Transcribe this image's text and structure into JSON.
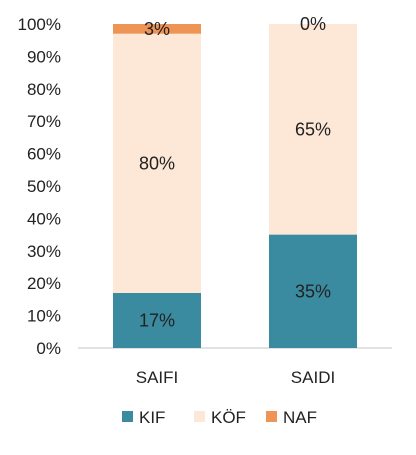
{
  "chart_data": {
    "type": "bar",
    "stacked": true,
    "categories": [
      "SAIFI",
      "SAIDI"
    ],
    "series": [
      {
        "name": "KIF",
        "values": [
          17,
          35
        ],
        "labels": [
          "17%",
          "35%"
        ],
        "color": "#3a8aa0"
      },
      {
        "name": "KÖF",
        "values": [
          80,
          65
        ],
        "labels": [
          "80%",
          "65%"
        ],
        "color": "#fde7d6"
      },
      {
        "name": "NAF",
        "values": [
          3,
          0
        ],
        "labels": [
          "3%",
          "0%"
        ],
        "color": "#ee9455"
      }
    ],
    "ylim": [
      0,
      100
    ],
    "yticks": [
      0,
      10,
      20,
      30,
      40,
      50,
      60,
      70,
      80,
      90,
      100
    ],
    "ytick_labels": [
      "0%",
      "10%",
      "20%",
      "30%",
      "40%",
      "50%",
      "60%",
      "70%",
      "80%",
      "90%",
      "100%"
    ],
    "grid": false,
    "legend_position": "bottom",
    "legend": [
      "KIF",
      "KÖF",
      "NAF"
    ]
  }
}
